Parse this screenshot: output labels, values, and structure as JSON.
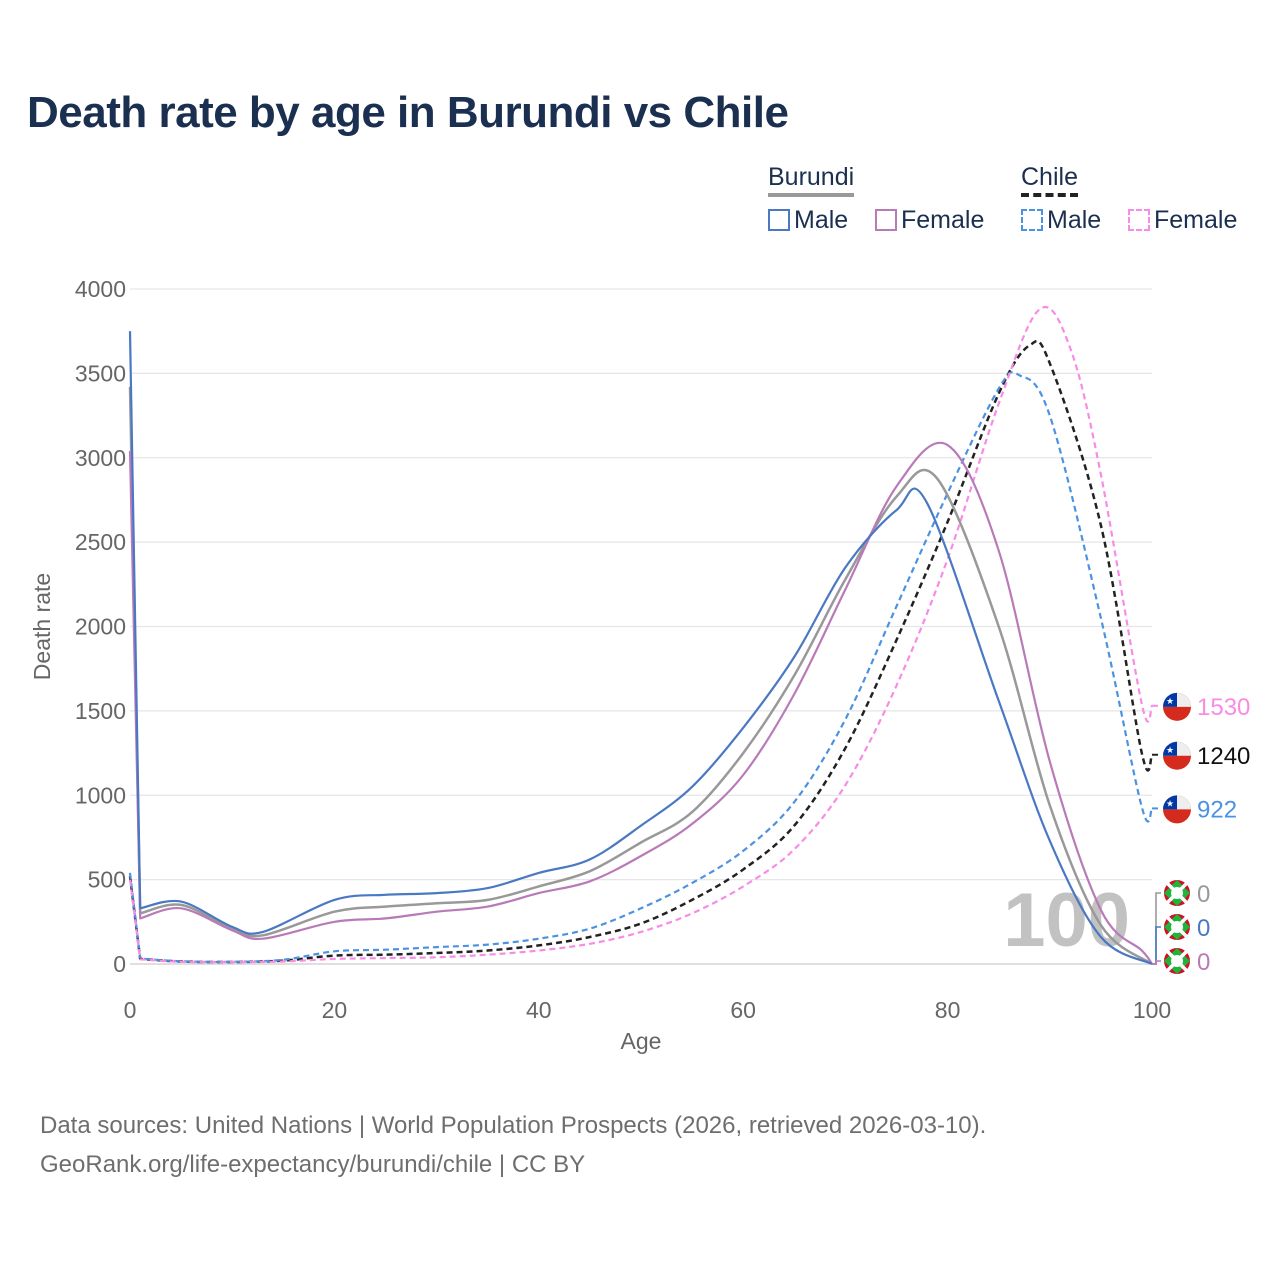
{
  "title": "Death rate by age in Burundi vs Chile",
  "legend": {
    "group1": "Burundi",
    "group2": "Chile",
    "male_label": "Male",
    "female_label": "Female"
  },
  "source_line1": "Data sources: United Nations | World Population Prospects (2026, retrieved 2026-03-10).",
  "source_line2": "GeoRank.org/life-expectancy/burundi/chile | CC BY",
  "colors": {
    "burundi_total": "#999999",
    "burundi_male": "#4a78c2",
    "burundi_female": "#b97ab8",
    "chile_total": "#222222",
    "chile_male": "#4b92e3",
    "chile_female": "#f88ce4"
  },
  "chart_data": {
    "type": "line",
    "title": "Death rate by age in Burundi vs Chile",
    "xlabel": "Age",
    "ylabel": "Death rate",
    "xlim": [
      0,
      100
    ],
    "ylim": [
      0,
      4000
    ],
    "xticks": [
      0,
      20,
      40,
      60,
      80,
      100
    ],
    "yticks": [
      0,
      500,
      1000,
      1500,
      2000,
      2500,
      3000,
      3500,
      4000
    ],
    "watermark": "100",
    "series": [
      {
        "name": "Burundi Total",
        "country": "Burundi",
        "sex": "Total",
        "dash": false,
        "x": [
          0,
          1,
          5,
          10,
          13,
          20,
          25,
          30,
          35,
          40,
          45,
          50,
          55,
          60,
          65,
          70,
          75,
          79,
          85,
          90,
          95,
          100
        ],
        "y": [
          3420,
          300,
          350,
          210,
          170,
          310,
          340,
          360,
          380,
          460,
          550,
          720,
          900,
          1250,
          1710,
          2280,
          2770,
          2875,
          2000,
          940,
          230,
          0
        ],
        "end_value": "0"
      },
      {
        "name": "Burundi Male",
        "country": "Burundi",
        "sex": "Male",
        "dash": false,
        "x": [
          0,
          1,
          5,
          10,
          13,
          20,
          25,
          30,
          35,
          40,
          45,
          50,
          55,
          60,
          65,
          70,
          75,
          78,
          85,
          90,
          95,
          100
        ],
        "y": [
          3750,
          330,
          370,
          220,
          190,
          380,
          410,
          420,
          450,
          540,
          620,
          820,
          1050,
          1400,
          1820,
          2350,
          2690,
          2730,
          1560,
          730,
          160,
          0
        ],
        "end_value": "0"
      },
      {
        "name": "Burundi Female",
        "country": "Burundi",
        "sex": "Female",
        "dash": false,
        "x": [
          0,
          1,
          5,
          10,
          13,
          20,
          25,
          30,
          35,
          40,
          45,
          50,
          55,
          60,
          65,
          70,
          75,
          80,
          85,
          90,
          95,
          99,
          100
        ],
        "y": [
          3040,
          270,
          330,
          200,
          150,
          250,
          270,
          310,
          340,
          420,
          490,
          640,
          830,
          1120,
          1600,
          2220,
          2830,
          3075,
          2450,
          1200,
          320,
          80,
          0
        ],
        "end_value": "0"
      },
      {
        "name": "Chile Total",
        "country": "Chile",
        "sex": "Total",
        "dash": true,
        "x": [
          0,
          1,
          5,
          10,
          15,
          20,
          25,
          30,
          35,
          40,
          45,
          50,
          55,
          60,
          65,
          70,
          75,
          80,
          85,
          88,
          90,
          95,
          99,
          100
        ],
        "y": [
          520,
          30,
          15,
          12,
          20,
          50,
          55,
          65,
          80,
          110,
          160,
          240,
          380,
          560,
          820,
          1280,
          1920,
          2620,
          3380,
          3665,
          3560,
          2600,
          1250,
          1240
        ],
        "end_value": "1240"
      },
      {
        "name": "Chile Male",
        "country": "Chile",
        "sex": "Male",
        "dash": true,
        "x": [
          0,
          1,
          5,
          10,
          15,
          20,
          25,
          30,
          35,
          40,
          45,
          50,
          55,
          60,
          65,
          70,
          75,
          80,
          85,
          87,
          90,
          95,
          99,
          100
        ],
        "y": [
          540,
          32,
          16,
          13,
          25,
          75,
          85,
          100,
          115,
          150,
          210,
          330,
          480,
          670,
          960,
          1450,
          2120,
          2790,
          3410,
          3490,
          3250,
          2050,
          930,
          922
        ],
        "end_value": "922"
      },
      {
        "name": "Chile Female",
        "country": "Chile",
        "sex": "Female",
        "dash": true,
        "x": [
          0,
          1,
          5,
          10,
          15,
          20,
          25,
          30,
          35,
          40,
          45,
          50,
          55,
          60,
          65,
          70,
          75,
          80,
          85,
          89,
          92,
          95,
          99,
          100
        ],
        "y": [
          500,
          28,
          13,
          11,
          15,
          30,
          35,
          40,
          55,
          80,
          120,
          190,
          300,
          460,
          680,
          1060,
          1650,
          2400,
          3320,
          3880,
          3650,
          2900,
          1540,
          1530
        ],
        "end_value": "1530"
      }
    ]
  }
}
